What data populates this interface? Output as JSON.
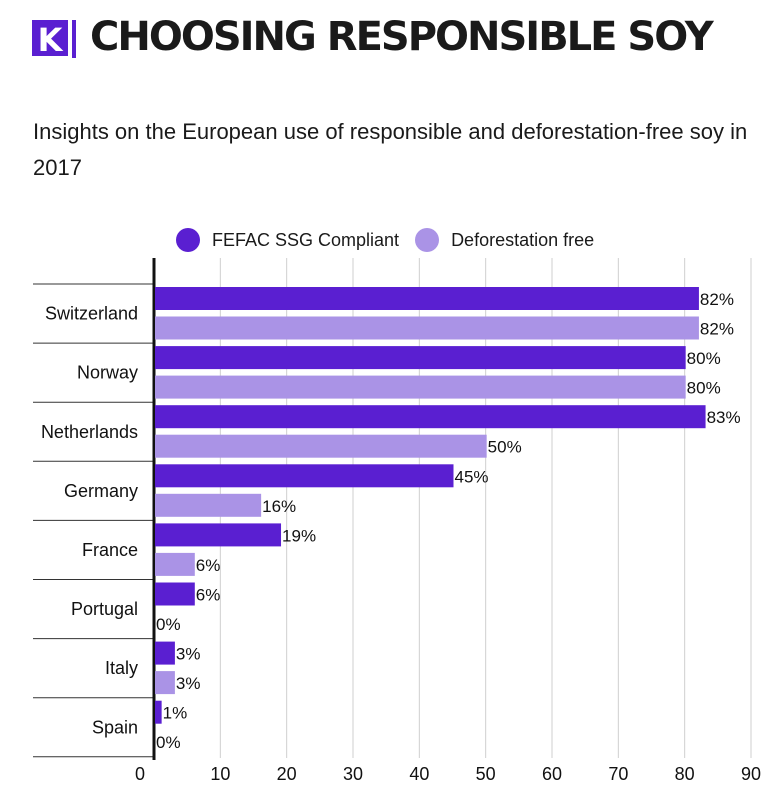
{
  "header": {
    "logo_letter": "K",
    "title": "CHOOSING RESPONSIBLE SOY",
    "subtitle": "Insights on the European use of responsible and deforestation-free soy in 2017"
  },
  "colors": {
    "brand": "#5a1fd1",
    "series1": "#5a1fd1",
    "series2": "#aa93e6",
    "grid": "#cfcfcf"
  },
  "chart_data": {
    "type": "bar",
    "orientation": "horizontal",
    "categories": [
      "Switzerland",
      "Norway",
      "Netherlands",
      "Germany",
      "France",
      "Portugal",
      "Italy",
      "Spain"
    ],
    "series": [
      {
        "name": "FEFAC SSG Compliant",
        "values": [
          82,
          80,
          83,
          45,
          19,
          6,
          3,
          1
        ],
        "color": "#5a1fd1"
      },
      {
        "name": "Deforestation free",
        "values": [
          82,
          80,
          50,
          16,
          6,
          0,
          3,
          0
        ],
        "color": "#aa93e6"
      }
    ],
    "value_suffix": "%",
    "xlim": [
      0,
      90
    ],
    "xticks": [
      0,
      10,
      20,
      30,
      40,
      50,
      60,
      70,
      80,
      90
    ],
    "grid": true,
    "legend_position": "top"
  }
}
